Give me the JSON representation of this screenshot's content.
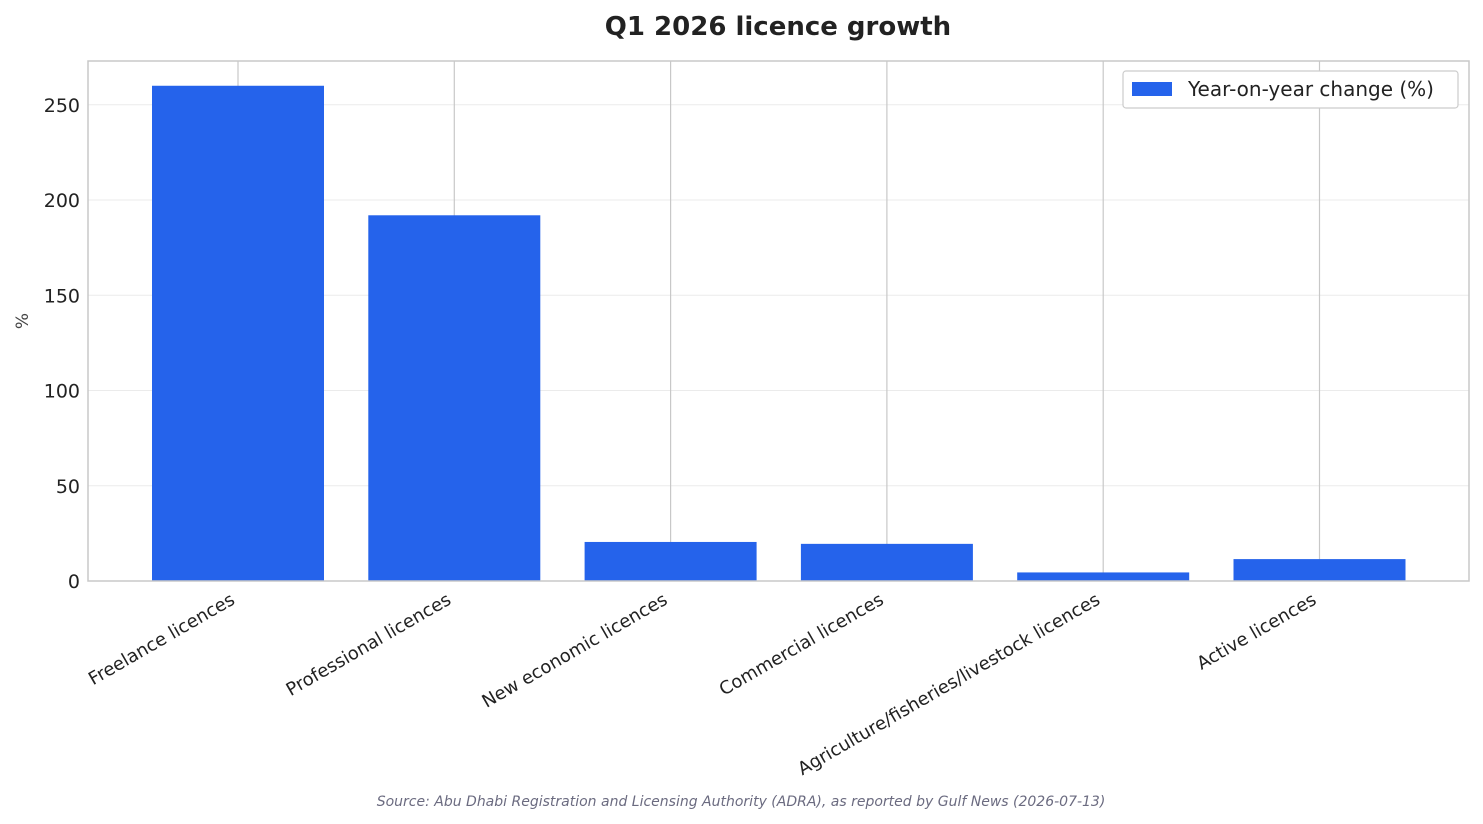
{
  "chart_data": {
    "type": "bar",
    "title": "Q1 2026 licence growth",
    "xlabel": "",
    "ylabel": "%",
    "categories": [
      "Freelance licences",
      "Professional licences",
      "New economic licences",
      "Commercial licences",
      "Agriculture/fisheries/livestock licences",
      "Active licences"
    ],
    "series": [
      {
        "name": "Year-on-year change (%)",
        "values": [
          260,
          192,
          20.5,
          19.5,
          4.5,
          11.5
        ],
        "color": "#2563eb"
      }
    ],
    "ylim": [
      0,
      273
    ],
    "yticks": [
      0,
      50,
      100,
      150,
      200,
      250
    ],
    "grid": true,
    "legend": "top-right",
    "source": "Source: Abu Dhabi Registration and Licensing Authority (ADRA), as reported by Gulf News (2026-07-13)"
  }
}
